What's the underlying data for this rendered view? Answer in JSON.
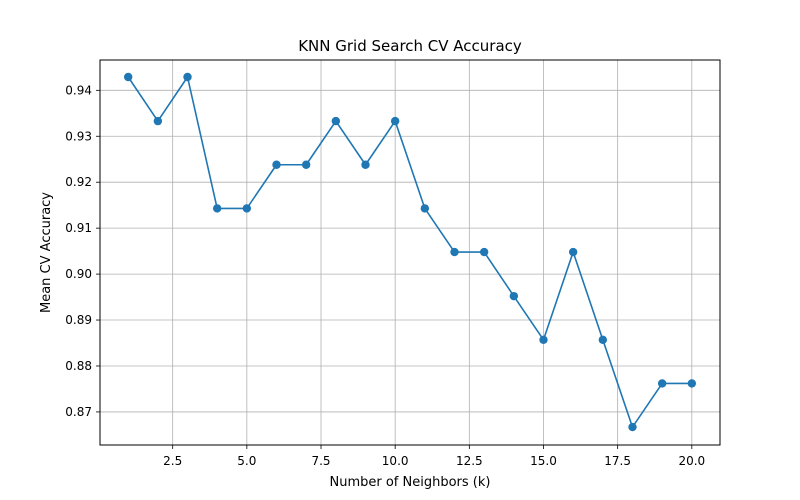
{
  "chart_data": {
    "type": "line",
    "title": "KNN Grid Search CV Accuracy",
    "xlabel": "Number of Neighbors (k)",
    "ylabel": "Mean CV Accuracy",
    "xlim": [
      0.05,
      20.95
    ],
    "ylim": [
      0.8628,
      0.9466
    ],
    "xticks": [
      2.5,
      5.0,
      7.5,
      10.0,
      12.5,
      15.0,
      17.5,
      20.0
    ],
    "xtick_labels": [
      "2.5",
      "5.0",
      "7.5",
      "10.0",
      "12.5",
      "15.0",
      "17.5",
      "20.0"
    ],
    "yticks": [
      0.87,
      0.88,
      0.89,
      0.9,
      0.91,
      0.92,
      0.93,
      0.94
    ],
    "ytick_labels": [
      "0.87",
      "0.88",
      "0.89",
      "0.90",
      "0.91",
      "0.92",
      "0.93",
      "0.94"
    ],
    "grid": true,
    "legend": "none",
    "line_color": "#1f77b4",
    "marker": "circle",
    "series": [
      {
        "x": [
          1,
          2,
          3,
          4,
          5,
          6,
          7,
          8,
          9,
          10,
          11,
          12,
          13,
          14,
          15,
          16,
          17,
          18,
          19,
          20
        ],
        "y": [
          0.9429,
          0.9333,
          0.9429,
          0.9143,
          0.9143,
          0.9238,
          0.9238,
          0.9333,
          0.9238,
          0.9333,
          0.9143,
          0.9048,
          0.9048,
          0.8952,
          0.8857,
          0.9048,
          0.8857,
          0.8667,
          0.8762,
          0.8762
        ]
      }
    ]
  }
}
